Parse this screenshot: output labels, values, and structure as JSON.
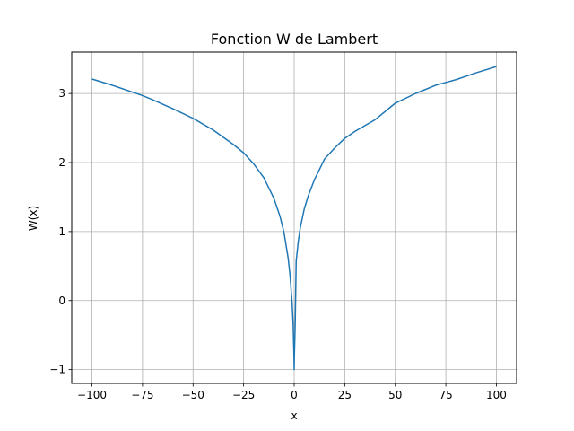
{
  "chart_data": {
    "type": "line",
    "title": "Fonction W de Lambert",
    "xlabel": "x",
    "ylabel": "W(x)",
    "xlim": [
      -110,
      110
    ],
    "ylim": [
      -1.2,
      3.6
    ],
    "grid": true,
    "x_ticks": [
      -100,
      -75,
      -50,
      -25,
      0,
      25,
      50,
      75,
      100
    ],
    "x_tick_labels": [
      "−100",
      "−75",
      "−50",
      "−25",
      "0",
      "25",
      "50",
      "75",
      "100"
    ],
    "y_ticks": [
      -1,
      0,
      1,
      2,
      3
    ],
    "y_tick_labels": [
      "−1",
      "0",
      "1",
      "2",
      "3"
    ],
    "series": [
      {
        "color": "#1f77b4",
        "x": [
          -100,
          -90,
          -80,
          -75,
          -70,
          -60,
          -50,
          -40,
          -30,
          -25,
          -20,
          -15,
          -10,
          -7,
          -5,
          -3,
          -2,
          -1,
          -0.5,
          -0.1,
          0,
          0.1,
          0.5,
          1,
          2,
          3,
          5,
          7,
          10,
          15,
          20,
          25,
          30,
          40,
          50,
          60,
          70,
          75,
          80,
          90,
          100
        ],
        "y": [
          3.21,
          3.12,
          3.02,
          2.97,
          2.91,
          2.78,
          2.64,
          2.47,
          2.26,
          2.14,
          1.98,
          1.78,
          1.48,
          1.22,
          0.98,
          0.62,
          0.35,
          -0.05,
          -0.35,
          -0.8,
          -1.0,
          -0.8,
          -0.35,
          0.57,
          0.85,
          1.05,
          1.33,
          1.52,
          1.75,
          2.05,
          2.21,
          2.35,
          2.45,
          2.62,
          2.86,
          3.0,
          3.12,
          3.16,
          3.2,
          3.3,
          3.39
        ]
      }
    ]
  }
}
